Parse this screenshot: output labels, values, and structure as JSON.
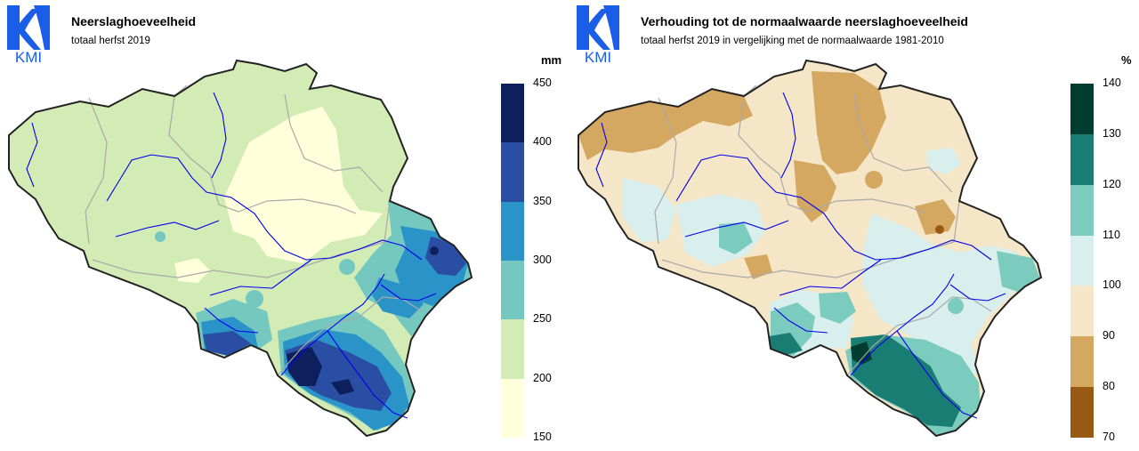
{
  "logo_text": "KMI",
  "left_panel": {
    "title": "Neerslaghoeveelheid",
    "subtitle": "totaal herfst 2019",
    "unit": "mm",
    "legend": {
      "ticks": [
        "450",
        "400",
        "350",
        "300",
        "250",
        "200",
        "150"
      ],
      "colors": [
        "#0d1f5c",
        "#2a4ea3",
        "#2a93c8",
        "#74c8c0",
        "#d3ecb5",
        "#ffffdc"
      ]
    }
  },
  "right_panel": {
    "title": "Verhouding tot de normaalwaarde neerslaghoeveelheid",
    "subtitle": "totaal herfst 2019 in vergelijking met de normaalwaarde 1981-2010",
    "unit": "%",
    "legend": {
      "ticks": [
        "140",
        "130",
        "120",
        "110",
        "100",
        "90",
        "80",
        "70"
      ],
      "colors": [
        "#003c30",
        "#1a7d73",
        "#7ccbbf",
        "#d9efed",
        "#f5e6c8",
        "#d4a860",
        "#985a12"
      ]
    }
  },
  "colors": {
    "logo_blue": "#1a5ee8",
    "border": "#222222",
    "province_lines": "#a9a9a9",
    "rivers": "#0000ee"
  }
}
